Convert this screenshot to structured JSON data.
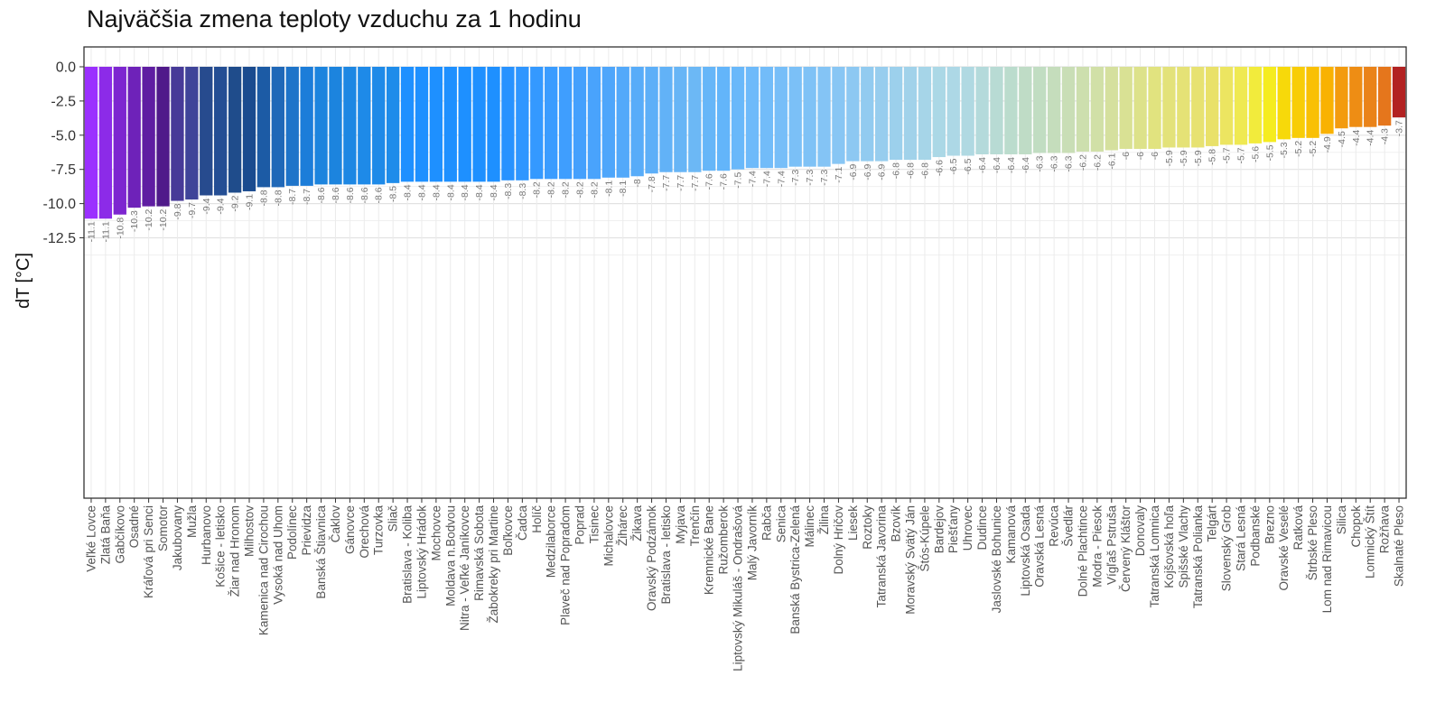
{
  "chart_data": {
    "type": "bar",
    "title": "Najväčšia zmena teploty vzduchu za 1 hodinu",
    "xlabel": "",
    "ylabel": "dT [°C]",
    "ylim": [
      -12.5,
      0
    ],
    "yticks": [
      "0.0",
      "-2.5",
      "-5.0",
      "-7.5",
      "-10.0",
      "-12.5"
    ],
    "grid": true,
    "categories": [
      "Veľké Lovce",
      "Zlatá Baňa",
      "Gabčíkovo",
      "Osadné",
      "Kráľová pri Senci",
      "Somotor",
      "Jakubovany",
      "Mužla",
      "Hurbanovo",
      "Košice - letisko",
      "Žiar nad Hronom",
      "Milhostov",
      "Kamenica nad Cirochou",
      "Vysoká nad Uhom",
      "Podolínec",
      "Prievidza",
      "Banská Štiavnica",
      "Čaklov",
      "Gánovce",
      "Orechová",
      "Turzovka",
      "Sliač",
      "Bratislava - Koliba",
      "Liptovský Hrádok",
      "Mochovce",
      "Moldava n.Bodvou",
      "Nitra - Veľké Janíkovce",
      "Rimavská Sobota",
      "Žabokreky pri Martine",
      "Boľkovce",
      "Čadca",
      "Holíč",
      "Medzilaborce",
      "Plaveč nad Popradom",
      "Poprad",
      "Tisinec",
      "Michalovce",
      "Žihárec",
      "Žikava",
      "Oravský Podzámok",
      "Bratislava - letisko",
      "Myjava",
      "Trenčín",
      "Kremnické Bane",
      "Ružomberok",
      "Liptovský Mikuláš - Ondrašová",
      "Malý Javorník",
      "Rabča",
      "Senica",
      "Banská  Bystrica-Zelená",
      "Málinec",
      "Žilina",
      "Dolný Hričov",
      "Liesek",
      "Roztoky",
      "Tatranská Javorina",
      "Bzovík",
      "Moravský Svätý Ján",
      "Štós-Kúpele",
      "Bardejov",
      "Piešťany",
      "Uhrovec",
      "Dudince",
      "Jaslovské Bohunice",
      "Kamanová",
      "Liptovská Osada",
      "Oravská Lesná",
      "Revúca",
      "Švedlár",
      "Dolné Plachtince",
      "Modra - Piesok",
      "Vígľaš Pstruša",
      "Červený Kláštor",
      "Donovaly",
      "Tatranská Lomnica",
      "Kojšovská hoľa",
      "Spišské Vlachy",
      "Tatranská Polianka",
      "Telgárt",
      "Slovenský Grob",
      "Stará Lesná",
      "Podbanské",
      "Brezno",
      "Oravské Veselé",
      "Ratková",
      "Štrbské Pleso",
      "Lom nad Rimavicou",
      "Silica",
      "Chopok",
      "Lomnický Štít",
      "Rožňava",
      "Skalnaté Pleso"
    ],
    "values": [
      -11.1,
      -11.1,
      -10.8,
      -10.3,
      -10.2,
      -10.2,
      -9.8,
      -9.7,
      -9.4,
      -9.4,
      -9.2,
      -9.1,
      -8.8,
      -8.8,
      -8.7,
      -8.7,
      -8.6,
      -8.6,
      -8.6,
      -8.6,
      -8.6,
      -8.5,
      -8.4,
      -8.4,
      -8.4,
      -8.4,
      -8.4,
      -8.4,
      -8.4,
      -8.3,
      -8.3,
      -8.2,
      -8.2,
      -8.2,
      -8.2,
      -8.2,
      -8.1,
      -8.1,
      -8,
      -7.8,
      -7.7,
      -7.7,
      -7.7,
      -7.6,
      -7.6,
      -7.5,
      -7.4,
      -7.4,
      -7.4,
      -7.3,
      -7.3,
      -7.3,
      -7.1,
      -6.9,
      -6.9,
      -6.9,
      -6.8,
      -6.8,
      -6.8,
      -6.6,
      -6.5,
      -6.5,
      -6.4,
      -6.4,
      -6.4,
      -6.4,
      -6.3,
      -6.3,
      -6.3,
      -6.2,
      -6.2,
      -6.1,
      -6,
      -6,
      -6,
      -5.9,
      -5.9,
      -5.9,
      -5.8,
      -5.7,
      -5.7,
      -5.6,
      -5.5,
      -5.3,
      -5.2,
      -5.2,
      -4.9,
      -4.5,
      -4.4,
      -4.4,
      -4.3,
      -3.7
    ],
    "value_labels": [
      "-11.1",
      "-11.1",
      "-10.8",
      "-10.3",
      "-10.2",
      "-10.2",
      "-9.8",
      "-9.7",
      "-9.4",
      "-9.4",
      "-9.2",
      "-9.1",
      "-8.8",
      "-8.8",
      "-8.7",
      "-8.7",
      "-8.6",
      "-8.6",
      "-8.6",
      "-8.6",
      "-8.6",
      "-8.5",
      "-8.4",
      "-8.4",
      "-8.4",
      "-8.4",
      "-8.4",
      "-8.4",
      "-8.4",
      "-8.3",
      "-8.3",
      "-8.2",
      "-8.2",
      "-8.2",
      "-8.2",
      "-8.2",
      "-8.1",
      "-8.1",
      "-8",
      "-7.8",
      "-7.7",
      "-7.7",
      "-7.7",
      "-7.6",
      "-7.6",
      "-7.5",
      "-7.4",
      "-7.4",
      "-7.4",
      "-7.3",
      "-7.3",
      "-7.3",
      "-7.1",
      "-6.9",
      "-6.9",
      "-6.9",
      "-6.8",
      "-6.8",
      "-6.8",
      "-6.6",
      "-6.5",
      "-6.5",
      "-6.4",
      "-6.4",
      "-6.4",
      "-6.4",
      "-6.3",
      "-6.3",
      "-6.3",
      "-6.2",
      "-6.2",
      "-6.1",
      "-6",
      "-6",
      "-6",
      "-5.9",
      "-5.9",
      "-5.9",
      "-5.8",
      "-5.7",
      "-5.7",
      "-5.6",
      "-5.5",
      "-5.3",
      "-5.2",
      "-5.2",
      "-4.9",
      "-4.5",
      "-4.4",
      "-4.4",
      "-4.3",
      "-3.7"
    ],
    "colors": [
      "#9B30FF",
      "#8C2BE8",
      "#7D26D0",
      "#6E22B9",
      "#5F1DA2",
      "#501A8A",
      "#473A98",
      "#3F4499",
      "#274B8E",
      "#244E94",
      "#1F4C8B",
      "#1A4B8F",
      "#1C5BA5",
      "#1F68B8",
      "#1E74C9",
      "#1C7DD9",
      "#1C84DE",
      "#1C84DE",
      "#1D87E3",
      "#1E8AE8",
      "#1E8AE8",
      "#1E8CEA",
      "#1E90FF",
      "#1E90FF",
      "#1E90FF",
      "#1E90FF",
      "#1E90FF",
      "#1E90FF",
      "#1E90FF",
      "#2792FF",
      "#2F96FF",
      "#3499FF",
      "#3A9CFF",
      "#3F9EFE",
      "#44A0FD",
      "#49A3FC",
      "#4EA6FB",
      "#53A9FA",
      "#58ACF9",
      "#5DAFF8",
      "#62B2F7",
      "#67B5F6",
      "#6CB8F5",
      "#66B6F8",
      "#63B5FA",
      "#69B8FA",
      "#6EBAFA",
      "#72BCF9",
      "#77BEF8",
      "#7BC0F7",
      "#7FC2F6",
      "#84C4F5",
      "#88C6F4",
      "#8DC8F2",
      "#92CBF0",
      "#97CDEE",
      "#9CD0EC",
      "#A1D2EA",
      "#A6D5E8",
      "#ABD8E6",
      "#ADD8E6",
      "#B0D9E2",
      "#B4DADB",
      "#B8DBD4",
      "#BBDCCD",
      "#BFDCC6",
      "#C1DDC2",
      "#C5DDBC",
      "#C9DEB6",
      "#CDDFAE",
      "#D1E0A7",
      "#D5E09E",
      "#D9E194",
      "#DDE28A",
      "#E1E37F",
      "#E3E27A",
      "#E5E276",
      "#E7E271",
      "#E9E169",
      "#ECE561",
      "#EFE952",
      "#F2EB3C",
      "#F5EC1F",
      "#F7D90A",
      "#F8CD07",
      "#F9C004",
      "#F9B202",
      "#F39B0E",
      "#EE8D14",
      "#EA8319",
      "#E5761C",
      "#B22222"
    ]
  }
}
